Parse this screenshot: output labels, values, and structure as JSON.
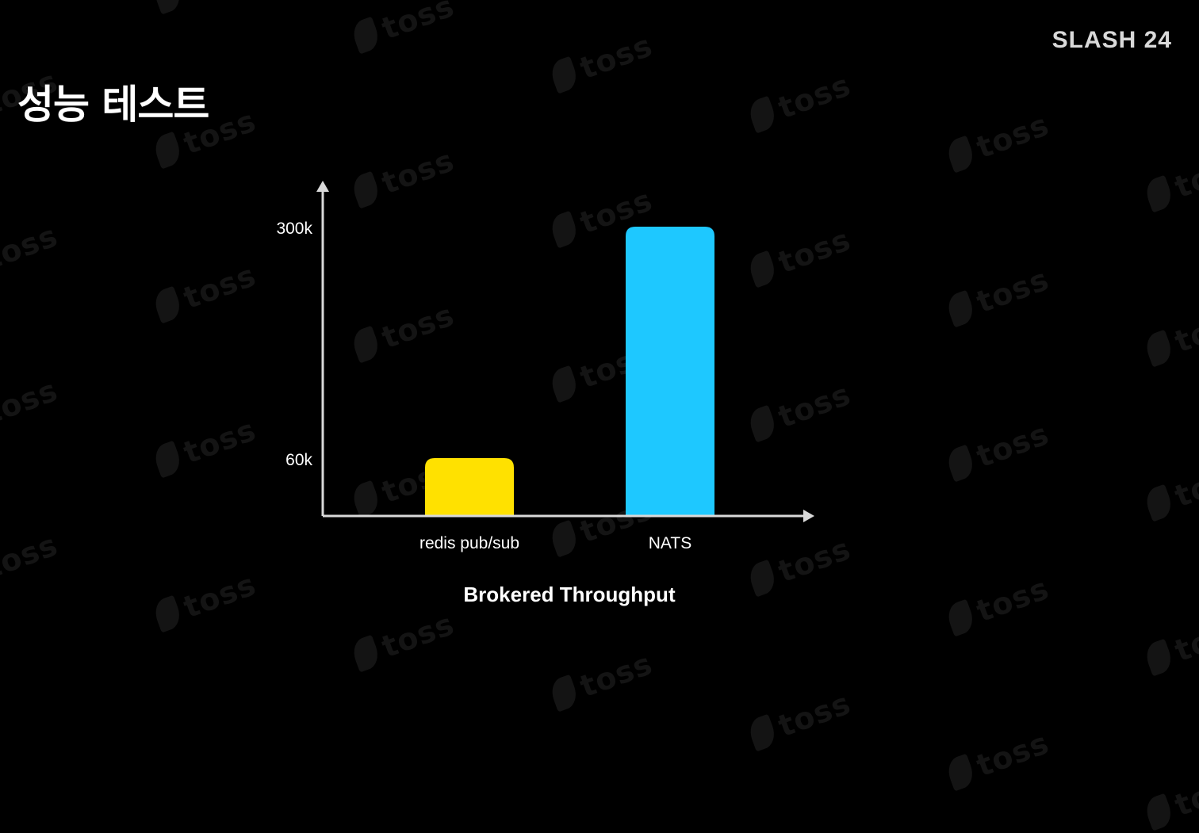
{
  "slide": {
    "title": "성능 테스트",
    "brand": "SLASH 24",
    "watermark_text": "toss"
  },
  "colors": {
    "background": "#000000",
    "axis": "#d9d9d9",
    "redis": "#ffe100",
    "nats": "#1ec8ff"
  },
  "chart_data": {
    "type": "bar",
    "categories": [
      "redis pub/sub",
      "NATS"
    ],
    "values": [
      60000,
      300000
    ],
    "bar_colors": [
      "#ffe100",
      "#1ec8ff"
    ],
    "yticks": [
      {
        "value": 60000,
        "label": "60k"
      },
      {
        "value": 300000,
        "label": "300k"
      }
    ],
    "ylim": [
      0,
      300000
    ],
    "title": "",
    "xlabel": "Brokered Throughput",
    "ylabel": "",
    "grid": false,
    "legend": "none"
  }
}
